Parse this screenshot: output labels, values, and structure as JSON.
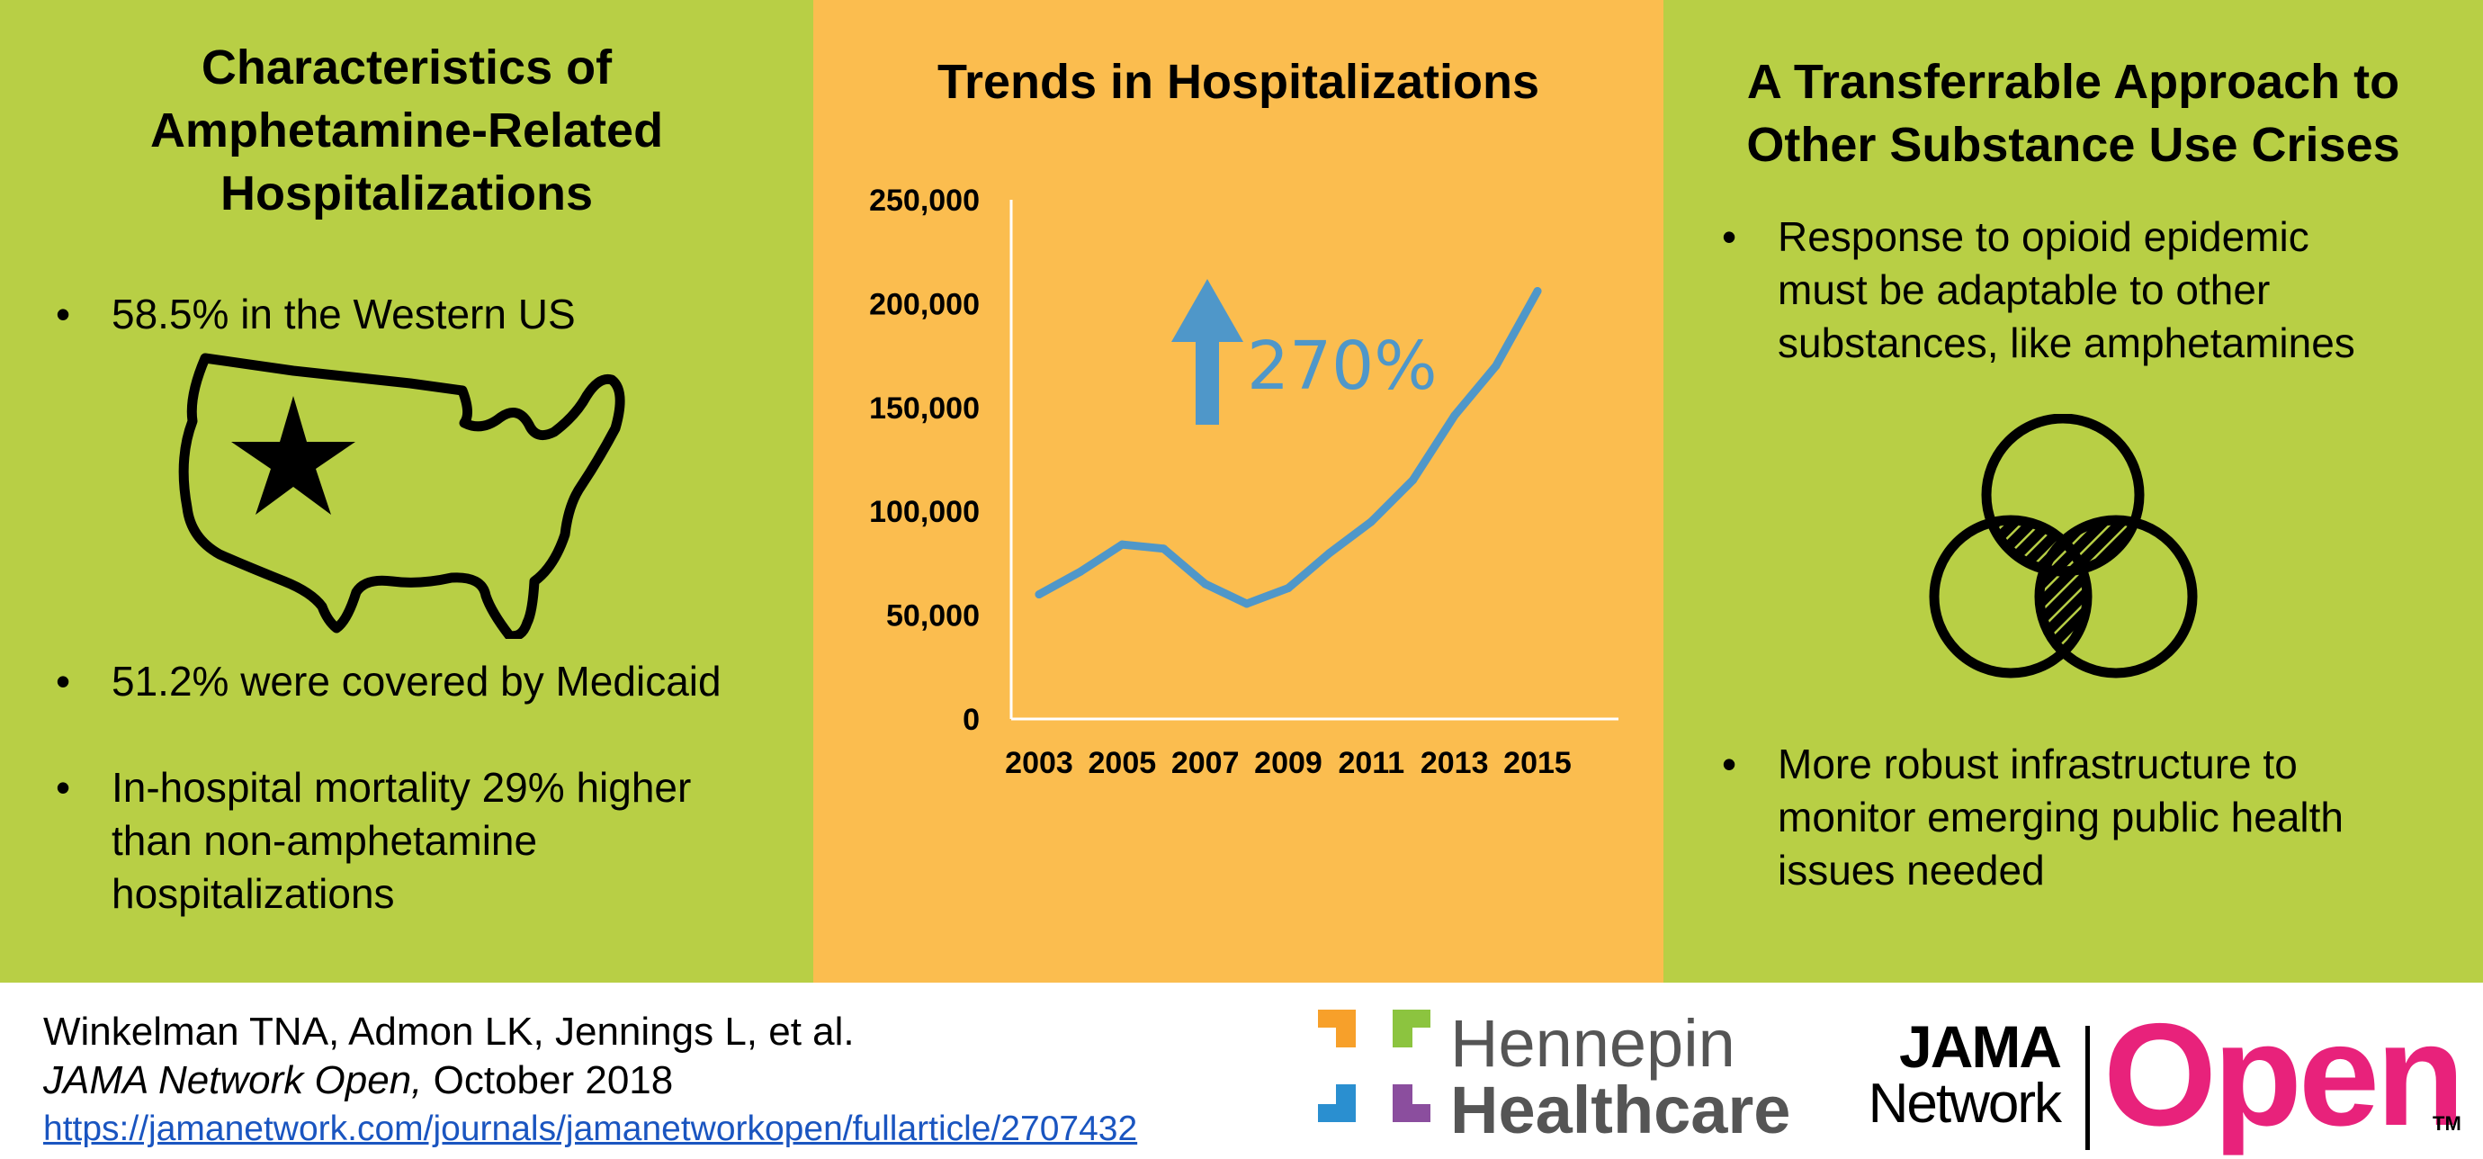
{
  "left_panel": {
    "title": "Characteristics of\nAmphetamine-Related\nHospitalizations",
    "bullets": [
      "58.5% in the Western US",
      "51.2% were covered by Medicaid",
      "In-hospital mortality 29% higher\nthan non-amphetamine\nhospitalizations"
    ],
    "icon": "us-map-star-icon"
  },
  "middle_panel": {
    "title": "Trends in Hospitalizations",
    "increase_label": "270%",
    "icon": "up-arrow-icon"
  },
  "right_panel": {
    "title": "A Transferrable Approach to\nOther Substance Use Crises",
    "bullets": [
      "Response to opioid epidemic\nmust be adaptable to other\nsubstances, like amphetamines",
      "More robust infrastructure to\nmonitor emerging public health\nissues needed"
    ],
    "icon": "venn-diagram-icon"
  },
  "bullet_char": "•",
  "citation": {
    "authors": "Winkelman TNA, Admon LK, Jennings L, et al.",
    "journal": "JAMA Network Open,",
    "date": " October 2018",
    "url": "https://jamanetwork.com/journals/jamanetworkopen/fullarticle/2707432"
  },
  "logos": {
    "hennepin_line1": "Hennepin",
    "hennepin_line2": "Healthcare",
    "jama_line1": "JAMA",
    "jama_line2": "Network",
    "open": "Open",
    "tm": "TM"
  },
  "colors": {
    "green": "#b8cf45",
    "orange": "#fbbd4f",
    "line": "#4f97c9",
    "open_pink": "#e8227b",
    "link": "#1a55c0"
  },
  "chart_data": {
    "type": "line",
    "title": "Trends in Hospitalizations",
    "x": [
      2003,
      2004,
      2005,
      2006,
      2007,
      2008,
      2009,
      2010,
      2011,
      2012,
      2013,
      2014,
      2015
    ],
    "series": [
      {
        "values": [
          60000,
          71000,
          84000,
          82000,
          65000,
          55500,
          63000,
          80000,
          95000,
          115000,
          146000,
          170000,
          206000
        ]
      }
    ],
    "x_tick_labels": [
      "2003",
      "2005",
      "2007",
      "2009",
      "2011",
      "2013",
      "2015"
    ],
    "y_tick_labels": [
      "0",
      "50,000",
      "100,000",
      "150,000",
      "200,000",
      "250,000"
    ],
    "ylim": [
      0,
      250000
    ],
    "xlim": [
      2003,
      2015
    ],
    "grid": false,
    "annotation": "270%"
  }
}
